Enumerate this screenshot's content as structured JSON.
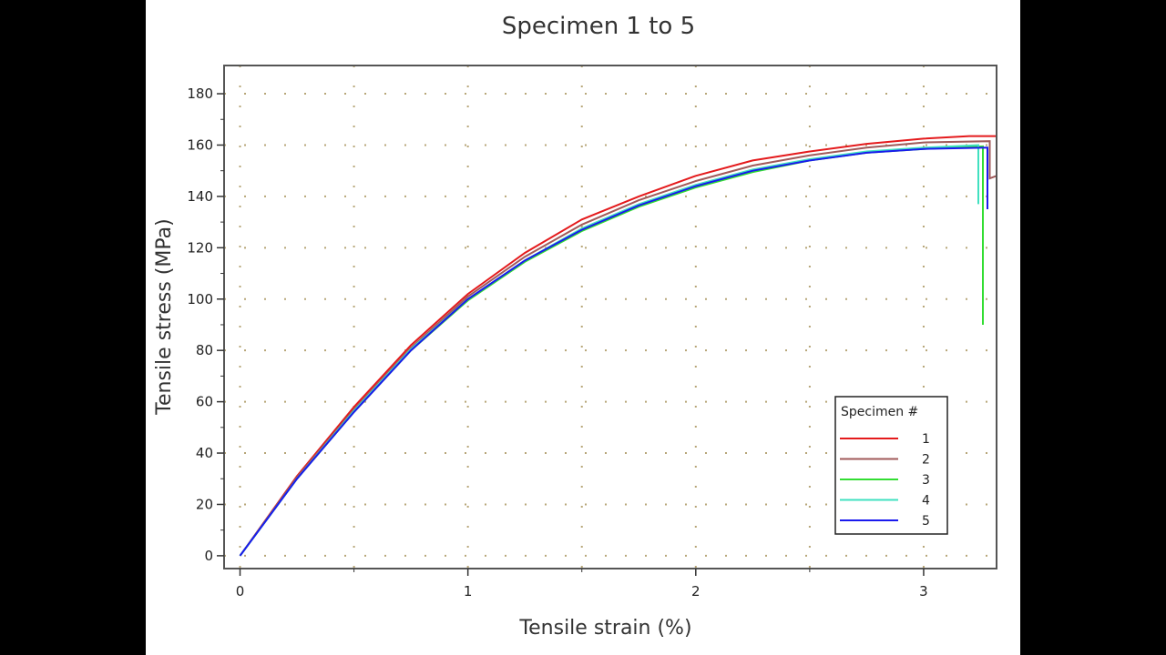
{
  "chart_data": {
    "type": "line",
    "title": "Specimen 1 to 5",
    "xlabel": "Tensile strain (%)",
    "ylabel": "Tensile stress (MPa)",
    "xlim": [
      -0.07,
      3.32
    ],
    "ylim": [
      -5,
      191
    ],
    "xticks": [
      0,
      1,
      2,
      3
    ],
    "yticks": [
      0,
      20,
      40,
      60,
      80,
      100,
      120,
      140,
      160,
      180
    ],
    "grid": true,
    "legend": {
      "title": "Specimen #",
      "position": "bottom-right"
    },
    "series": [
      {
        "name": "1",
        "color": "#e41a1c",
        "points": [
          [
            0,
            0
          ],
          [
            0.25,
            31
          ],
          [
            0.5,
            58
          ],
          [
            0.75,
            82
          ],
          [
            1,
            102
          ],
          [
            1.25,
            118
          ],
          [
            1.5,
            131
          ],
          [
            1.75,
            140
          ],
          [
            2,
            148
          ],
          [
            2.25,
            154
          ],
          [
            2.5,
            157.5
          ],
          [
            2.75,
            160.5
          ],
          [
            3,
            162.5
          ],
          [
            3.2,
            163.5
          ],
          [
            3.32,
            163.5
          ]
        ]
      },
      {
        "name": "2",
        "color": "#a05a5a",
        "points": [
          [
            0,
            0
          ],
          [
            0.25,
            30.5
          ],
          [
            0.5,
            57
          ],
          [
            0.75,
            81
          ],
          [
            1,
            101
          ],
          [
            1.25,
            116.5
          ],
          [
            1.5,
            129
          ],
          [
            1.75,
            138.5
          ],
          [
            2,
            146
          ],
          [
            2.25,
            152
          ],
          [
            2.5,
            156
          ],
          [
            2.75,
            159
          ],
          [
            3,
            161
          ],
          [
            3.29,
            161.5
          ],
          [
            3.29,
            147
          ],
          [
            3.32,
            148
          ]
        ]
      },
      {
        "name": "3",
        "color": "#33dd33",
        "points": [
          [
            0,
            0
          ],
          [
            0.25,
            30
          ],
          [
            0.5,
            56
          ],
          [
            0.75,
            80
          ],
          [
            1,
            99.5
          ],
          [
            1.25,
            114.5
          ],
          [
            1.5,
            126.5
          ],
          [
            1.75,
            136
          ],
          [
            2,
            143.5
          ],
          [
            2.25,
            149.5
          ],
          [
            2.5,
            154
          ],
          [
            2.75,
            157
          ],
          [
            3,
            158.5
          ],
          [
            3.26,
            159.5
          ],
          [
            3.26,
            90
          ]
        ]
      },
      {
        "name": "4",
        "color": "#40e0c0",
        "points": [
          [
            0,
            0
          ],
          [
            0.25,
            30
          ],
          [
            0.5,
            56.5
          ],
          [
            0.75,
            80.5
          ],
          [
            1,
            100
          ],
          [
            1.25,
            115
          ],
          [
            1.5,
            127.5
          ],
          [
            1.75,
            137
          ],
          [
            2,
            144.5
          ],
          [
            2.25,
            150.5
          ],
          [
            2.5,
            154.5
          ],
          [
            2.75,
            157.5
          ],
          [
            3,
            159
          ],
          [
            3.24,
            160
          ],
          [
            3.24,
            137
          ]
        ]
      },
      {
        "name": "5",
        "color": "#1a1aee",
        "points": [
          [
            0,
            0
          ],
          [
            0.25,
            30
          ],
          [
            0.5,
            56
          ],
          [
            0.75,
            80
          ],
          [
            1,
            100
          ],
          [
            1.25,
            115
          ],
          [
            1.5,
            127
          ],
          [
            1.75,
            136.5
          ],
          [
            2,
            144
          ],
          [
            2.25,
            150
          ],
          [
            2.5,
            154
          ],
          [
            2.75,
            157
          ],
          [
            3,
            158.5
          ],
          [
            3.28,
            159
          ],
          [
            3.28,
            135
          ]
        ]
      }
    ]
  }
}
